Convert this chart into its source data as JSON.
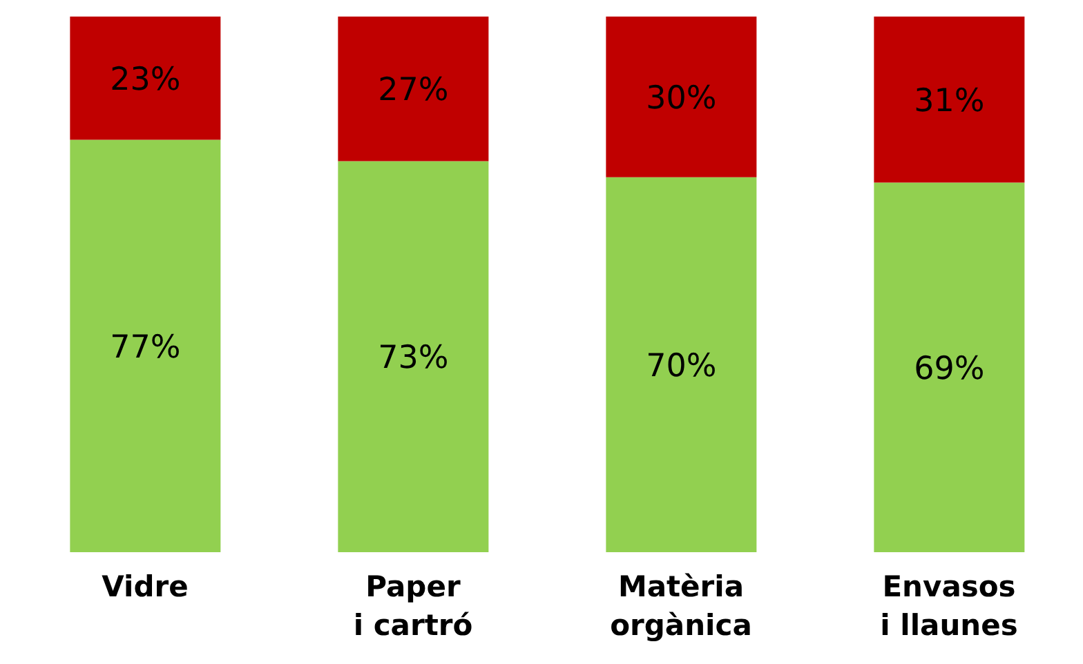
{
  "chart_data": {
    "type": "bar",
    "stacked": true,
    "categories": [
      "Vidre",
      "Paper\ni cartró",
      "Matèria\norgànica",
      "Envasos\ni llaunes"
    ],
    "series": [
      {
        "color": "#92d050",
        "values": [
          77,
          73,
          70,
          69
        ],
        "value_labels": [
          "77%",
          "73%",
          "70%",
          "69%"
        ]
      },
      {
        "color": "#c00000",
        "values": [
          23,
          27,
          30,
          31
        ],
        "value_labels": [
          "23%",
          "27%",
          "30%",
          "31%"
        ]
      }
    ]
  }
}
